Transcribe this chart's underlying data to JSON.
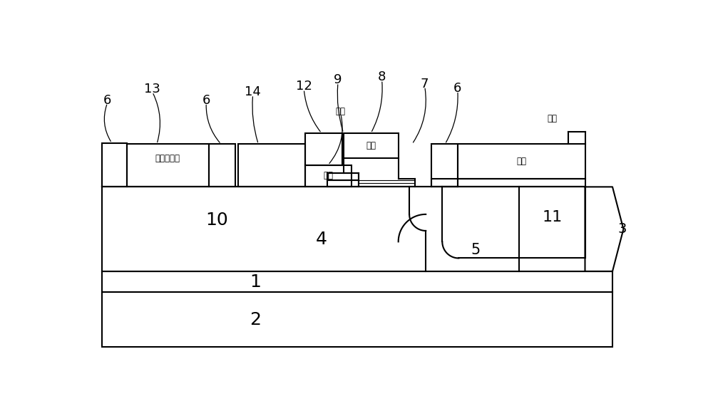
{
  "bg_color": "#ffffff",
  "line_color": "#000000",
  "lw": 1.5,
  "lw_thin": 0.8,
  "labels": {
    "6a": "6",
    "13": "13",
    "6b": "6",
    "14": "14",
    "12": "12",
    "9": "9",
    "8": "8",
    "7": "7",
    "6c": "6",
    "3": "3",
    "10": "10",
    "4": "4",
    "11": "11",
    "5": "5",
    "1": "1",
    "2": "2",
    "diode": "二极管外端",
    "source": "源极",
    "gate": "栌极",
    "drain": "漏极"
  }
}
